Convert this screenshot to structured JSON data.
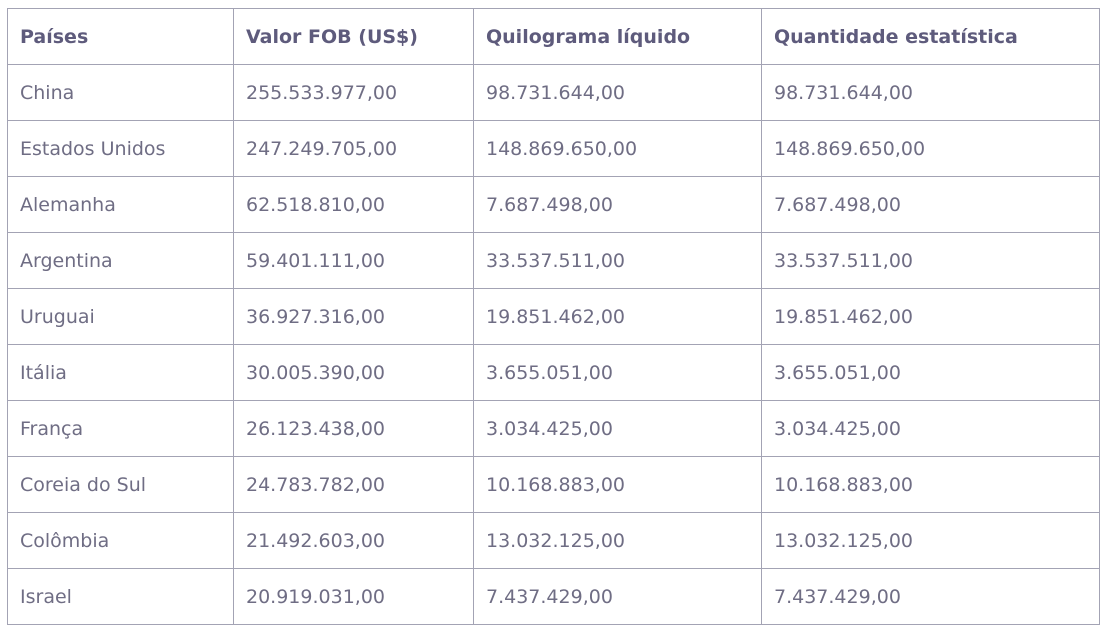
{
  "table": {
    "headers": [
      "Países",
      "Valor FOB (US$)",
      "Quilograma líquido",
      "Quantidade estatística"
    ],
    "rows": [
      [
        "China",
        "255.533.977,00",
        "98.731.644,00",
        "98.731.644,00"
      ],
      [
        "Estados Unidos",
        "247.249.705,00",
        "148.869.650,00",
        "148.869.650,00"
      ],
      [
        "Alemanha",
        "62.518.810,00",
        "7.687.498,00",
        "7.687.498,00"
      ],
      [
        "Argentina",
        "59.401.111,00",
        "33.537.511,00",
        "33.537.511,00"
      ],
      [
        "Uruguai",
        "36.927.316,00",
        "19.851.462,00",
        "19.851.462,00"
      ],
      [
        "Itália",
        "30.005.390,00",
        "3.655.051,00",
        "3.655.051,00"
      ],
      [
        "França",
        "26.123.438,00",
        "3.034.425,00",
        "3.034.425,00"
      ],
      [
        "Coreia do Sul",
        "24.783.782,00",
        "10.168.883,00",
        "10.168.883,00"
      ],
      [
        "Colômbia",
        "21.492.603,00",
        "13.032.125,00",
        "13.032.125,00"
      ],
      [
        "Israel",
        "20.919.031,00",
        "7.437.429,00",
        "7.437.429,00"
      ]
    ]
  },
  "colors": {
    "header_text": "#5e5b7c",
    "cell_text": "#6f6d84",
    "border": "#a3a3b4"
  }
}
